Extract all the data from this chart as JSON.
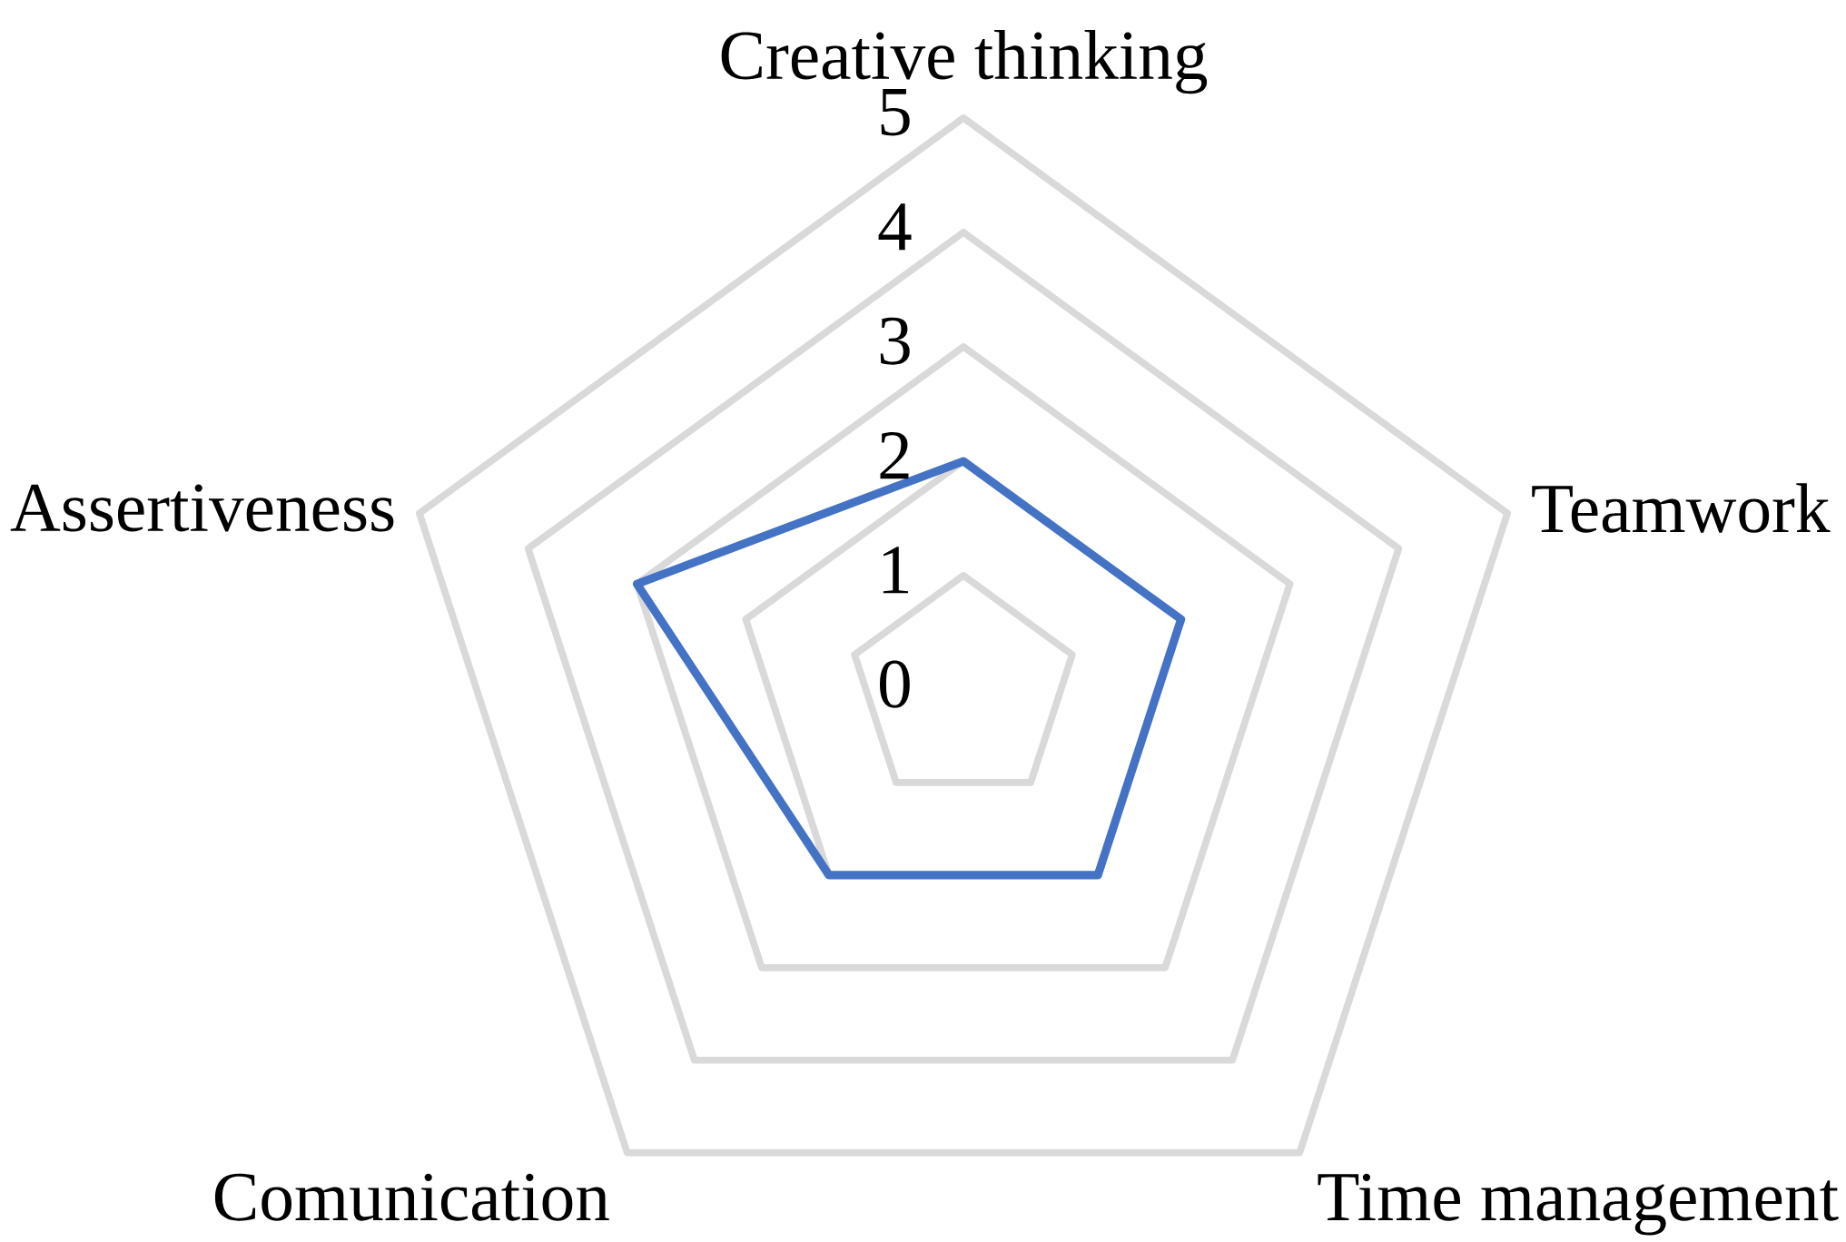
{
  "chart_data": {
    "type": "radar",
    "categories": [
      "Creative thinking",
      "Teamwork",
      "Time management",
      "Comunication",
      "Assertiveness"
    ],
    "series": [
      {
        "color": "#4472c4",
        "values": [
          2,
          2,
          2,
          2,
          3
        ]
      }
    ],
    "ylim": [
      0,
      5
    ],
    "yticks": [
      0,
      1,
      2,
      3,
      4,
      5
    ],
    "grid": true
  }
}
